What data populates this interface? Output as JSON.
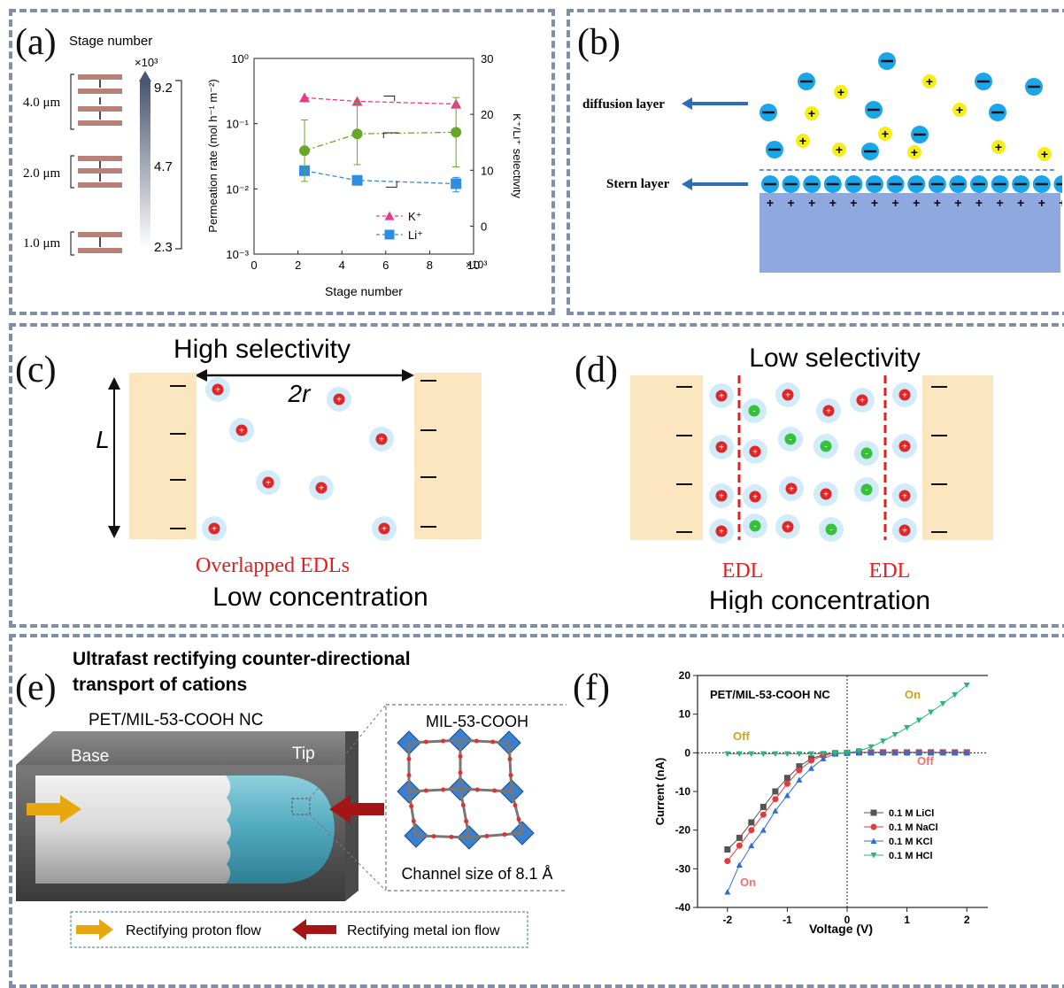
{
  "panel_labels": {
    "a": "(a)",
    "b": "(b)",
    "c": "(c)",
    "d": "(d)",
    "e": "(e)",
    "f": "(f)"
  },
  "panel_a": {
    "stage_title": "Stage number",
    "colorbar_exp": "×10³",
    "colorbar_ticks": [
      "9.2",
      "4.7",
      "2.3"
    ],
    "thickness_labels": [
      "4.0 μm",
      "2.0 μm",
      "1.0 μm"
    ],
    "chart_x_exp": "×10³"
  },
  "panel_b": {
    "diffusion_label": "diffusion layer",
    "stern_label": "Stern layer"
  },
  "panel_c": {
    "title": "High selectivity",
    "width_label": "2r",
    "length_label": "L",
    "red_caption": "Overlapped EDLs",
    "caption": "Low concentration"
  },
  "panel_d": {
    "title": "Low selectivity",
    "edl_left": "EDL",
    "edl_right": "EDL",
    "caption": "High concentration"
  },
  "panel_e": {
    "title_line1": "Ultrafast rectifying counter-directional",
    "title_line2": "transport of cations",
    "nc_label": "PET/MIL-53-COOH NC",
    "base_label": "Base",
    "tip_label": "Tip",
    "inset_title": "MIL-53-COOH",
    "inset_caption": "Channel size of 8.1 Å",
    "legend_proton": "Rectifying proton flow",
    "legend_metal": "Rectifying metal ion flow"
  },
  "chart_data": [
    {
      "type": "scatter",
      "xlabel": "Stage number",
      "ylabel": "Permeation rate (mol h⁻¹ m⁻²)",
      "y2label": "K⁺/Li⁺ selectivity",
      "x_ticks": [
        "0",
        "2",
        "4",
        "6",
        "8",
        "10"
      ],
      "xlim": [
        0,
        10
      ],
      "ylim": [
        0.001,
        1
      ],
      "yscale": "log",
      "y_ticks": [
        "10⁰",
        "10⁻¹",
        "10⁻²",
        "10⁻³"
      ],
      "y2lim": [
        -5,
        30
      ],
      "y2_ticks": [
        "30",
        "20",
        "10",
        "0"
      ],
      "series": [
        {
          "name": "K⁺",
          "axis": "left",
          "color": "#e8398a",
          "marker": "triangle",
          "x": [
            2.3,
            4.7,
            9.2
          ],
          "y": [
            0.25,
            0.22,
            0.2
          ]
        },
        {
          "name": "Li⁺",
          "axis": "left",
          "color": "#2e8de0",
          "marker": "square",
          "x": [
            2.3,
            4.7,
            9.2
          ],
          "y": [
            0.019,
            0.0135,
            0.012
          ],
          "err": [
            0.002,
            0.0015,
            0.003
          ]
        },
        {
          "axis": "right",
          "color": "#6aa62a",
          "marker": "circle",
          "x": [
            2.3,
            4.7,
            9.2
          ],
          "y": [
            13.5,
            16.5,
            16.8
          ],
          "err": [
            5.5,
            5.5,
            6.2
          ]
        }
      ]
    },
    {
      "type": "line",
      "title": "PET/MIL-53-COOH NC",
      "xlabel": "Voltage (V)",
      "ylabel": "Current (nA)",
      "xlim": [
        -2.5,
        2.5
      ],
      "ylim": [
        -40,
        20
      ],
      "x_ticks": [
        "-2",
        "-1",
        "0",
        "1",
        "2"
      ],
      "y_ticks": [
        "20",
        "10",
        "0",
        "-10",
        "-20",
        "-30",
        "-40"
      ],
      "x": [
        -2.0,
        -1.8,
        -1.6,
        -1.4,
        -1.2,
        -1.0,
        -0.8,
        -0.6,
        -0.4,
        -0.2,
        0.0,
        0.2,
        0.4,
        0.6,
        0.8,
        1.0,
        1.2,
        1.4,
        1.6,
        1.8,
        2.0
      ],
      "series": [
        {
          "name": "0.1 M LiCl",
          "color": "#555555",
          "marker": "square",
          "values": [
            -25,
            -22,
            -18,
            -14,
            -10,
            -6.5,
            -3.5,
            -1.5,
            -0.5,
            -0.1,
            0,
            0.1,
            0.1,
            0.1,
            0.1,
            0.1,
            0.1,
            0.1,
            0.1,
            0.1,
            0.1
          ]
        },
        {
          "name": "0.1 M NaCl",
          "color": "#e33b3b",
          "marker": "circle",
          "values": [
            -28,
            -24,
            -20,
            -16,
            -12,
            -8,
            -4.5,
            -2,
            -0.7,
            -0.1,
            0,
            0.1,
            0.1,
            0.1,
            0.1,
            0.1,
            0.1,
            0.1,
            0.1,
            0.1,
            0.1
          ]
        },
        {
          "name": "0.1 M KCl",
          "color": "#2c6fd4",
          "marker": "triangle",
          "values": [
            -36,
            -29,
            -24,
            -20,
            -15,
            -11,
            -7,
            -4,
            -1.5,
            -0.3,
            0,
            0.1,
            0.1,
            0.1,
            0.1,
            0.1,
            0.1,
            0.1,
            0.1,
            0.1,
            0.1
          ]
        },
        {
          "name": "0.1 M HCl",
          "color": "#2cb67d",
          "marker": "triangle-down",
          "values": [
            -0.3,
            -0.3,
            -0.3,
            -0.3,
            -0.3,
            -0.3,
            -0.3,
            -0.3,
            -0.2,
            -0.1,
            0,
            0.5,
            1.5,
            3,
            4.7,
            6.5,
            8.4,
            10.5,
            12.7,
            15.0,
            17.5
          ]
        }
      ],
      "annotations": [
        {
          "text": "On",
          "color": "#d4a017"
        },
        {
          "text": "Off",
          "color": "#d4a017"
        },
        {
          "text": "Off",
          "color": "#f07070"
        },
        {
          "text": "On",
          "color": "#f07070"
        }
      ]
    }
  ]
}
